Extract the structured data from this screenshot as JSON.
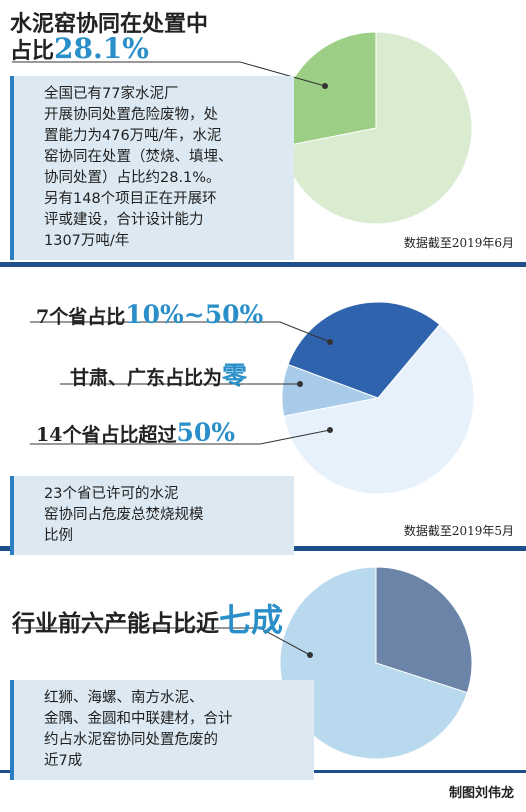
{
  "chart_data": [
    {
      "type": "pie",
      "title_lines": [
        "水泥窑协同在处置中",
        "占比"
      ],
      "values": [
        28.1,
        71.9
      ],
      "value_labels": [
        "28.1%",
        null
      ],
      "colors": [
        "#9ccf85",
        "#d9ecd0"
      ],
      "text": [
        "全国已有77家水泥厂",
        "开展协同处置危险废物，处",
        "置能力为476万吨/年，水泥",
        "窑协同在处置（焚烧、填埋、",
        "协同处置）占比约28.1%。",
        "另有148个项目正在开展环",
        "评或建设，合计设计能力",
        "1307万吨/年"
      ],
      "note": "数据截至2019年6月"
    },
    {
      "type": "pie",
      "annotations": [
        {
          "text": "7个省占比",
          "em": "10%~50%"
        },
        {
          "text": "甘肃、广东占比为",
          "em": "零"
        },
        {
          "text": "14个省占比超过",
          "em": "50%"
        }
      ],
      "values": [
        7,
        2,
        14
      ],
      "colors": [
        "#2f63ad",
        "#a8cbe9",
        "#e7f1fb"
      ],
      "text": [
        "23个省已许可的水泥",
        "窑协同占危废总焚烧规模",
        "比例"
      ],
      "note": "数据截至2019年5月"
    },
    {
      "type": "pie",
      "title": "行业前六产能占比近",
      "title_em": "七成",
      "values": [
        70,
        30
      ],
      "colors": [
        "#b9d9ee",
        "#6b84a8"
      ],
      "text": [
        "红狮、海螺、南方水泥、",
        "金隅、金圆和中联建材，合计",
        "约占水泥窑协同处置危废的",
        "近7成"
      ]
    }
  ],
  "credit": "制图刘伟龙"
}
